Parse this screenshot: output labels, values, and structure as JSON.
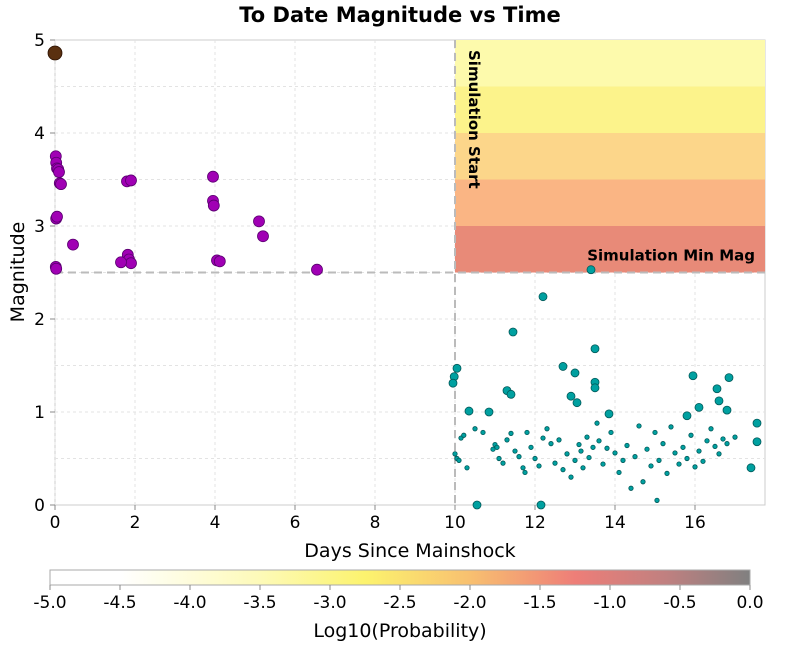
{
  "chart_data": {
    "type": "scatter",
    "title": "To Date Magnitude vs Time",
    "xlabel": "Days Since Mainshock",
    "ylabel": "Magnitude",
    "xlim": [
      0,
      17.75
    ],
    "ylim": [
      0,
      5
    ],
    "xticks": [
      0,
      2,
      4,
      6,
      8,
      10,
      12,
      14,
      16
    ],
    "yticks": [
      0,
      1,
      2,
      3,
      4,
      5
    ],
    "grid": true,
    "annotations": {
      "simulation_start_label": "Simulation Start",
      "simulation_min_mag_label": "Simulation Min Mag",
      "simulation_start_day": 10,
      "simulation_min_mag": 2.5
    },
    "heatmap": {
      "x_range": [
        10,
        17.75
      ],
      "bands": [
        {
          "mag_range": [
            2.5,
            3.0
          ],
          "log10_prob": -1.45,
          "color": "#e88a78"
        },
        {
          "mag_range": [
            3.0,
            3.5
          ],
          "log10_prob": -2.05,
          "color": "#fab584"
        },
        {
          "mag_range": [
            3.5,
            4.0
          ],
          "log10_prob": -2.5,
          "color": "#fcd68a"
        },
        {
          "mag_range": [
            4.0,
            4.5
          ],
          "log10_prob": -3.05,
          "color": "#fcf38b"
        },
        {
          "mag_range": [
            4.5,
            5.0
          ],
          "log10_prob": -3.55,
          "color": "#fdfaac"
        }
      ]
    },
    "series": [
      {
        "marker_color": "#a000b4",
        "values": [
          [
            0.02,
            3.75
          ],
          [
            0.03,
            3.68
          ],
          [
            0.05,
            3.62
          ],
          [
            0.08,
            3.61
          ],
          [
            0.1,
            3.58
          ],
          [
            0.12,
            3.46
          ],
          [
            0.15,
            3.45
          ],
          [
            0.03,
            3.08
          ],
          [
            0.05,
            3.1
          ],
          [
            0.02,
            2.56
          ],
          [
            0.03,
            2.54
          ],
          [
            0.45,
            2.8
          ],
          [
            1.8,
            3.48
          ],
          [
            1.9,
            3.49
          ],
          [
            1.82,
            2.69
          ],
          [
            1.85,
            2.64
          ],
          [
            1.9,
            2.6
          ],
          [
            1.65,
            2.61
          ],
          [
            3.95,
            3.53
          ],
          [
            3.95,
            3.27
          ],
          [
            3.97,
            3.22
          ],
          [
            4.05,
            2.63
          ],
          [
            4.12,
            2.62
          ],
          [
            5.1,
            3.05
          ],
          [
            5.2,
            2.89
          ],
          [
            6.55,
            2.53
          ]
        ]
      },
      {
        "marker_color": "#00a0a0",
        "values": [
          [
            13.4,
            2.53
          ],
          [
            12.2,
            2.24
          ],
          [
            11.45,
            1.86
          ],
          [
            13.5,
            1.68
          ],
          [
            12.7,
            1.49
          ],
          [
            13.0,
            1.42
          ],
          [
            13.5,
            1.32
          ],
          [
            13.5,
            1.26
          ],
          [
            11.3,
            1.23
          ],
          [
            11.4,
            1.19
          ],
          [
            12.9,
            1.17
          ],
          [
            13.05,
            1.1
          ],
          [
            15.95,
            1.39
          ],
          [
            16.85,
            1.37
          ],
          [
            16.55,
            1.25
          ],
          [
            16.6,
            1.12
          ],
          [
            16.1,
            1.05
          ],
          [
            16.8,
            1.02
          ],
          [
            15.8,
            0.96
          ],
          [
            10.05,
            1.47
          ],
          [
            9.98,
            1.38
          ],
          [
            9.95,
            1.31
          ],
          [
            10.35,
            1.01
          ],
          [
            10.85,
            1.0
          ],
          [
            13.85,
            0.98
          ],
          [
            17.55,
            0.88
          ],
          [
            17.55,
            0.68
          ],
          [
            17.4,
            0.4
          ],
          [
            12.15,
            0.0
          ],
          [
            10.55,
            0.0
          ]
        ]
      },
      {
        "marker_color": "#00a0a0",
        "values": [
          [
            10.0,
            0.55
          ],
          [
            10.05,
            0.5
          ],
          [
            10.1,
            0.48
          ],
          [
            10.15,
            0.72
          ],
          [
            10.22,
            0.75
          ],
          [
            10.3,
            0.4
          ],
          [
            10.5,
            0.82
          ],
          [
            10.7,
            0.78
          ],
          [
            10.95,
            0.6
          ],
          [
            11.0,
            0.65
          ],
          [
            11.05,
            0.62
          ],
          [
            11.1,
            0.5
          ],
          [
            11.2,
            0.45
          ],
          [
            11.3,
            0.7
          ],
          [
            11.4,
            0.77
          ],
          [
            11.5,
            0.58
          ],
          [
            11.6,
            0.52
          ],
          [
            11.7,
            0.4
          ],
          [
            11.75,
            0.35
          ],
          [
            11.8,
            0.78
          ],
          [
            11.9,
            0.62
          ],
          [
            12.0,
            0.5
          ],
          [
            12.1,
            0.42
          ],
          [
            12.2,
            0.72
          ],
          [
            12.3,
            0.82
          ],
          [
            12.4,
            0.66
          ],
          [
            12.5,
            0.45
          ],
          [
            12.6,
            0.7
          ],
          [
            12.7,
            0.38
          ],
          [
            12.8,
            0.55
          ],
          [
            12.9,
            0.3
          ],
          [
            13.0,
            0.48
          ],
          [
            13.1,
            0.65
          ],
          [
            13.15,
            0.58
          ],
          [
            13.2,
            0.4
          ],
          [
            13.3,
            0.73
          ],
          [
            13.35,
            0.51
          ],
          [
            13.45,
            0.62
          ],
          [
            13.55,
            0.88
          ],
          [
            13.6,
            0.69
          ],
          [
            13.7,
            0.44
          ],
          [
            13.8,
            0.61
          ],
          [
            13.9,
            0.78
          ],
          [
            14.0,
            0.56
          ],
          [
            14.1,
            0.35
          ],
          [
            14.2,
            0.48
          ],
          [
            14.3,
            0.64
          ],
          [
            14.4,
            0.18
          ],
          [
            14.5,
            0.52
          ],
          [
            14.6,
            0.85
          ],
          [
            14.7,
            0.25
          ],
          [
            14.8,
            0.6
          ],
          [
            14.9,
            0.42
          ],
          [
            15.0,
            0.78
          ],
          [
            15.05,
            0.05
          ],
          [
            15.1,
            0.48
          ],
          [
            15.2,
            0.66
          ],
          [
            15.3,
            0.34
          ],
          [
            15.4,
            0.84
          ],
          [
            15.5,
            0.56
          ],
          [
            15.6,
            0.44
          ],
          [
            15.7,
            0.62
          ],
          [
            15.8,
            0.5
          ],
          [
            15.9,
            0.75
          ],
          [
            16.0,
            0.41
          ],
          [
            16.1,
            0.58
          ],
          [
            16.2,
            0.47
          ],
          [
            16.3,
            0.69
          ],
          [
            16.4,
            0.82
          ],
          [
            16.5,
            0.63
          ],
          [
            16.6,
            0.55
          ],
          [
            16.7,
            0.71
          ],
          [
            16.8,
            0.66
          ],
          [
            17.0,
            0.73
          ]
        ]
      },
      {
        "marker_color": "#5a3010",
        "values": [
          [
            0.0,
            4.86
          ]
        ]
      }
    ],
    "colorbar": {
      "label": "Log10(Probability)",
      "range": [
        -5.0,
        0.0
      ],
      "ticks": [
        "-5.0",
        "-4.5",
        "-4.0",
        "-3.5",
        "-3.0",
        "-2.5",
        "-2.0",
        "-1.5",
        "-1.0",
        "-0.5",
        "0.0"
      ]
    }
  }
}
